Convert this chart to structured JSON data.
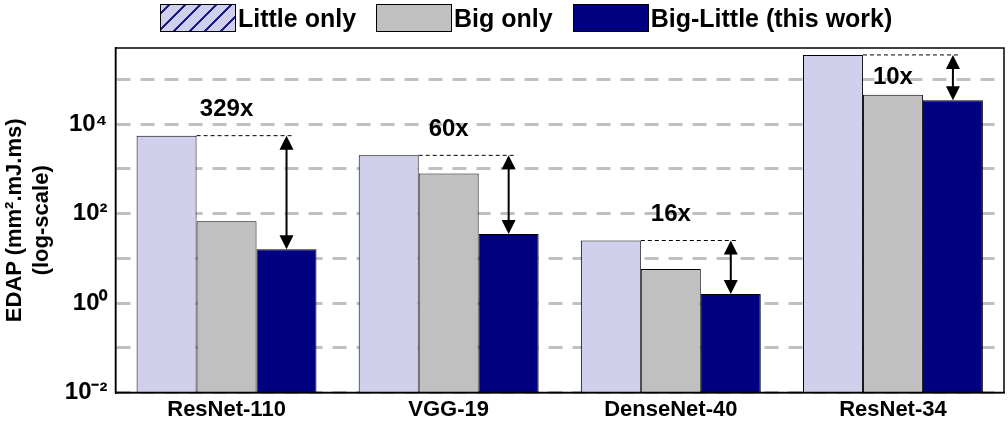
{
  "chart_data": {
    "type": "bar",
    "ylabel": "EDAP (mm².mJ.ms)\n(log-scale)",
    "categories": [
      "ResNet-110",
      "VGG-19",
      "DenseNet-40",
      "ResNet-34"
    ],
    "series": [
      {
        "name": "Little only",
        "color": "#d0d0ec",
        "values": [
          5500,
          2000,
          25,
          350000
        ]
      },
      {
        "name": "Big only",
        "color": "#c0c0c0",
        "values": [
          67,
          790,
          5.8,
          45000
        ]
      },
      {
        "name": "Big-Little (this work)",
        "color": "#000080",
        "values": [
          16,
          35,
          1.6,
          34000
        ]
      }
    ],
    "log": true,
    "ylim": [
      0.01,
      500000
    ],
    "yticks": [
      {
        "value": 0.01,
        "label": "10⁻²"
      },
      {
        "value": 0.1,
        "label": null
      },
      {
        "value": 1,
        "label": "10⁰"
      },
      {
        "value": 10,
        "label": null
      },
      {
        "value": 100,
        "label": "10²"
      },
      {
        "value": 1000,
        "label": null
      },
      {
        "value": 10000,
        "label": "10⁴"
      },
      {
        "value": 100000,
        "label": null
      }
    ],
    "grid": "y",
    "legend": "top",
    "annotations": [
      "329x",
      "60x",
      "16x",
      "10x"
    ]
  }
}
